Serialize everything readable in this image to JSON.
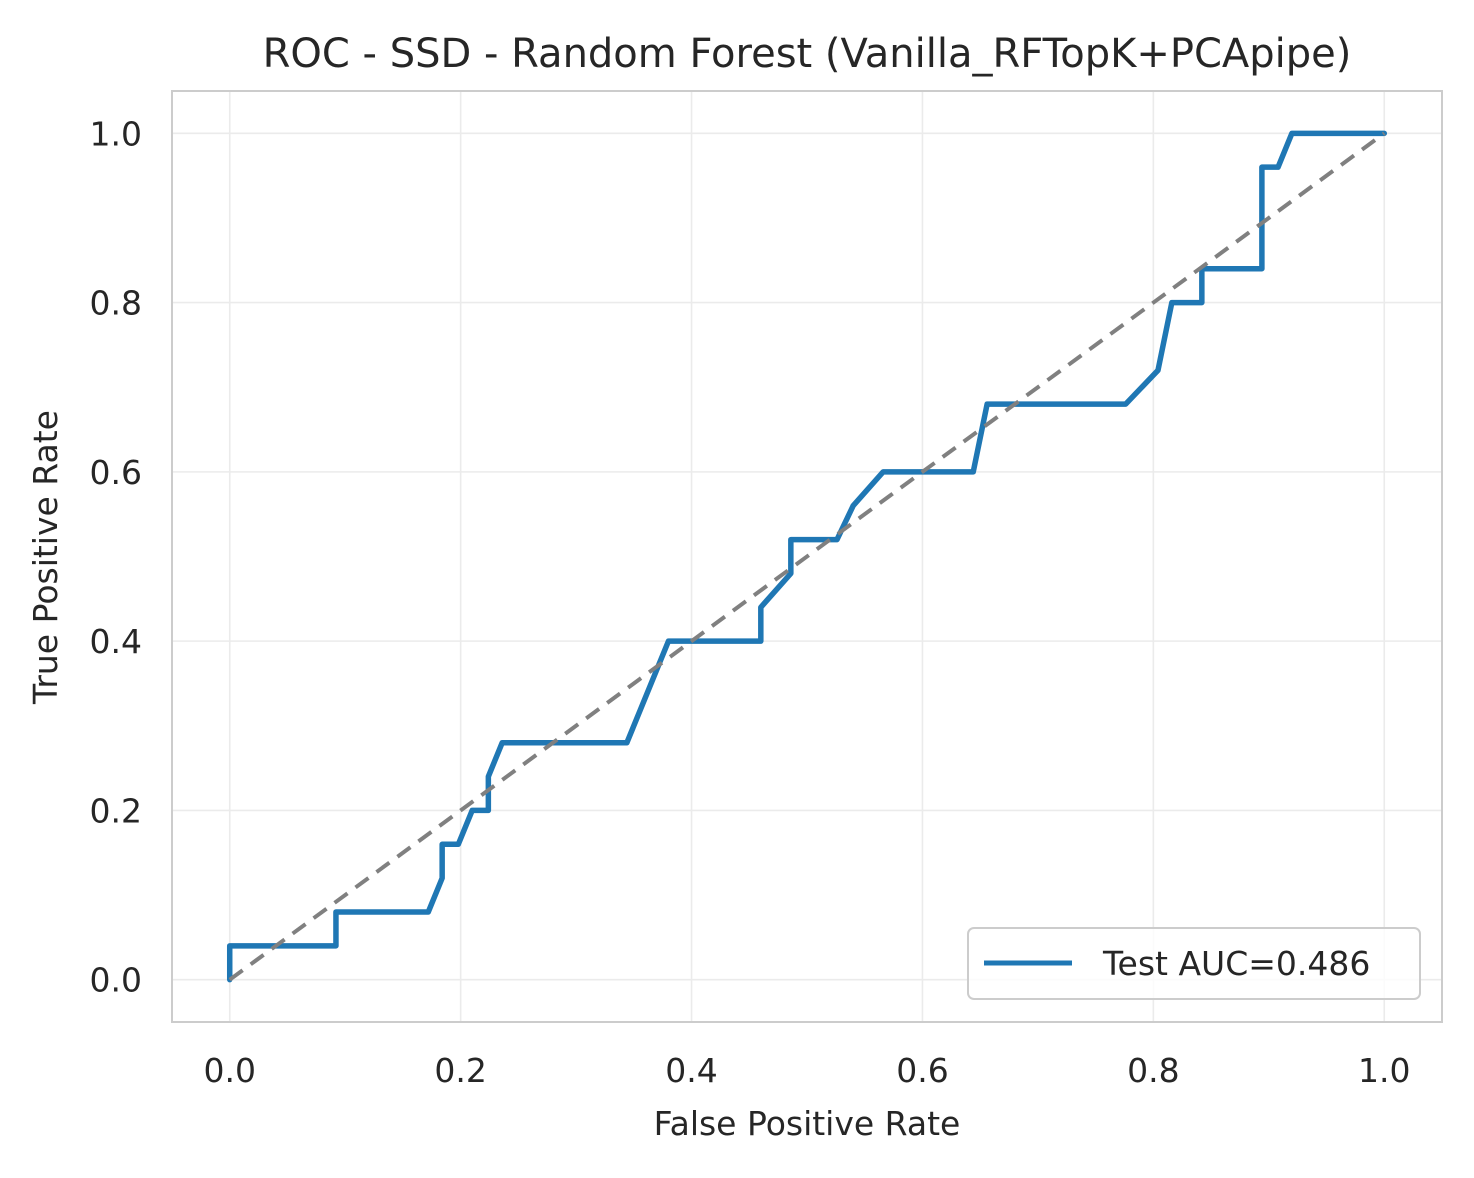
{
  "chart_data": {
    "type": "line",
    "title": "ROC - SSD - Random Forest (Vanilla_RFTopK+PCApipe)",
    "xlabel": "False Positive Rate",
    "ylabel": "True Positive Rate",
    "xlim": [
      -0.05,
      1.05
    ],
    "ylim": [
      -0.05,
      1.05
    ],
    "grid": true,
    "legend_position": "lower-right",
    "x_ticks": [
      0.0,
      0.2,
      0.4,
      0.6,
      0.8,
      1.0
    ],
    "y_ticks": [
      0.0,
      0.2,
      0.4,
      0.6,
      0.8,
      1.0
    ],
    "x_tick_labels": [
      "0.0",
      "0.2",
      "0.4",
      "0.6",
      "0.8",
      "1.0"
    ],
    "y_tick_labels": [
      "0.0",
      "0.2",
      "0.4",
      "0.6",
      "0.8",
      "1.0"
    ],
    "series": [
      {
        "name": "Test AUC=0.486",
        "color": "#1f77b4",
        "style": "solid",
        "x": [
          0.0,
          0.0,
          0.092,
          0.092,
          0.172,
          0.184,
          0.184,
          0.198,
          0.21,
          0.224,
          0.224,
          0.236,
          0.344,
          0.38,
          0.46,
          0.46,
          0.486,
          0.486,
          0.526,
          0.54,
          0.566,
          0.644,
          0.656,
          0.776,
          0.804,
          0.816,
          0.842,
          0.842,
          0.894,
          0.894,
          0.908,
          0.92,
          1.0
        ],
        "y": [
          0.0,
          0.04,
          0.04,
          0.08,
          0.08,
          0.12,
          0.16,
          0.16,
          0.2,
          0.2,
          0.24,
          0.28,
          0.28,
          0.4,
          0.4,
          0.44,
          0.48,
          0.52,
          0.52,
          0.56,
          0.6,
          0.6,
          0.68,
          0.68,
          0.72,
          0.8,
          0.8,
          0.84,
          0.84,
          0.96,
          0.96,
          1.0,
          1.0
        ]
      },
      {
        "color": "#808080",
        "style": "dashed",
        "x": [
          0.0,
          1.0
        ],
        "y": [
          0.0,
          1.0
        ]
      }
    ]
  },
  "colors": {
    "grid": "#ebebeb",
    "spine": "#cccccc",
    "text": "#262626",
    "legend_border": "#cccccc"
  }
}
